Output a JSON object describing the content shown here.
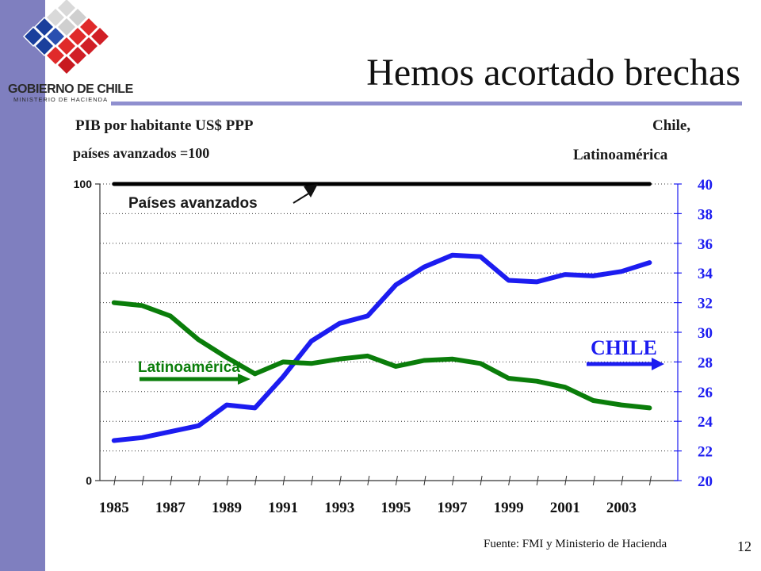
{
  "header": {
    "title": "Hemos acortado brechas",
    "logo_name": "GOBIERNO DE CHILE",
    "logo_subtitle": "MINISTERIO DE HACIENDA"
  },
  "footer": {
    "source": "Fuente: FMI y Ministerio de Hacienda",
    "page_number": "12"
  },
  "colors": {
    "sidebar": "#7f7fbf",
    "advanced": "#000000",
    "chile": "#1c1cf0",
    "latam": "#0a7d0a"
  },
  "chart_data": {
    "type": "line",
    "left_axis_title_line1": "PIB por habitante US$ PPP",
    "left_axis_title_line2": "países avanzados =100",
    "right_axis_title_line1": "Chile,",
    "right_axis_title_line2": "Latinoamérica",
    "x": [
      1985,
      1986,
      1987,
      1988,
      1989,
      1990,
      1991,
      1992,
      1993,
      1994,
      1995,
      1996,
      1997,
      1998,
      1999,
      2000,
      2001,
      2002,
      2003,
      2004
    ],
    "x_tick_labels": [
      "1985",
      "1987",
      "1989",
      "1991",
      "1993",
      "1995",
      "1997",
      "1999",
      "2001",
      "2003"
    ],
    "left_ylim": [
      0,
      100
    ],
    "left_tick_labels": [
      "100",
      "0"
    ],
    "right_ylim": [
      20,
      40
    ],
    "right_ticks": [
      20,
      22,
      24,
      26,
      28,
      30,
      32,
      34,
      36,
      38,
      40
    ],
    "grid": "horizontal dotted",
    "series": [
      {
        "name": "Países avanzados",
        "axis": "left",
        "values": [
          100,
          100,
          100,
          100,
          100,
          100,
          100,
          100,
          100,
          100,
          100,
          100,
          100,
          100,
          100,
          100,
          100,
          100,
          100,
          100
        ]
      },
      {
        "name": "CHILE",
        "axis": "right",
        "values": [
          22.7,
          22.9,
          23.3,
          23.7,
          25.1,
          24.9,
          27.0,
          29.4,
          30.6,
          31.1,
          33.2,
          34.4,
          35.2,
          35.1,
          33.5,
          33.4,
          33.9,
          33.8,
          34.1,
          34.7
        ]
      },
      {
        "name": "Latinoamérica",
        "axis": "right",
        "values": [
          32.0,
          31.8,
          31.1,
          29.5,
          28.3,
          27.2,
          28.0,
          27.9,
          28.2,
          28.4,
          27.7,
          28.1,
          28.2,
          27.9,
          26.9,
          26.7,
          26.3,
          25.4,
          25.1,
          24.9
        ]
      }
    ],
    "annotations": {
      "advanced_label": "Países avanzados",
      "chile_label": "CHILE",
      "latam_label": "Latinoamérica"
    }
  }
}
